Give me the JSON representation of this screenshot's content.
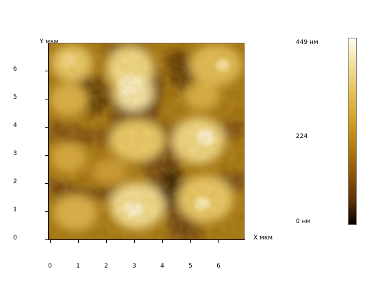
{
  "y_axis": {
    "label": "Y мкм",
    "ticks": [
      "0",
      "1",
      "2",
      "3",
      "4",
      "5",
      "6"
    ]
  },
  "x_axis": {
    "label": "X мкм",
    "ticks": [
      "0",
      "1",
      "2",
      "3",
      "4",
      "5",
      "6"
    ]
  },
  "colorbar": {
    "max_label": "449 нм",
    "mid_label": "224",
    "min_label": "0 нм"
  },
  "colors": {
    "high": "#fffdf0",
    "mid": "#cf9f24",
    "low": "#000000"
  },
  "image": {
    "type": "afm-topography",
    "xrange": [
      0,
      7
    ],
    "yrange": [
      0,
      7
    ]
  }
}
